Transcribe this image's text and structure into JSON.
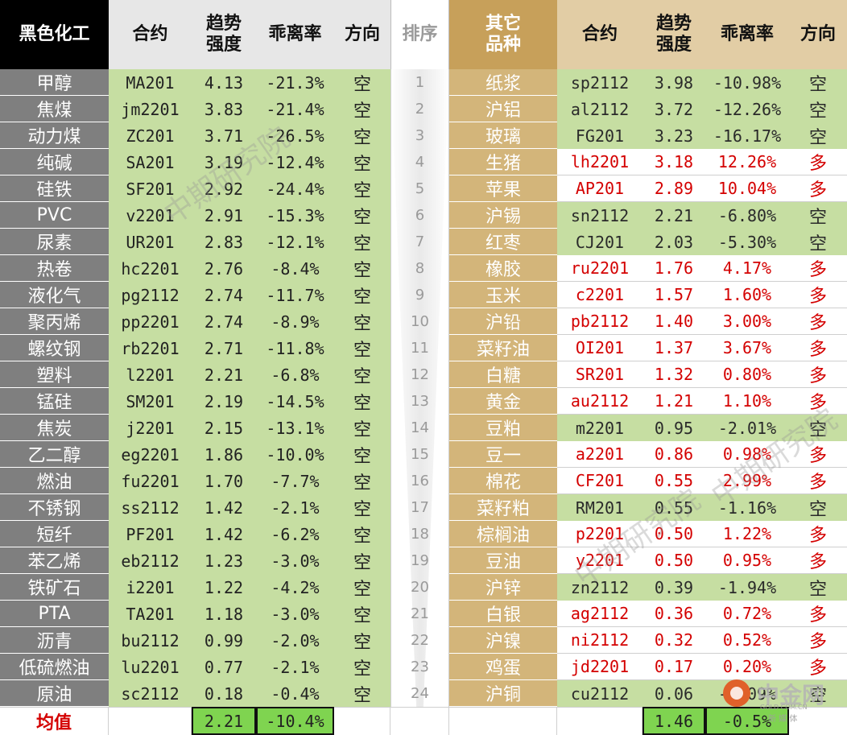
{
  "headers": {
    "left_category": "黑色化工",
    "contract": "合约",
    "trend_line1": "趋势",
    "trend_line2": "强度",
    "deviation": "乖离率",
    "direction": "方向",
    "rank": "排序",
    "right_category_line1": "其它",
    "right_category_line2": "品种"
  },
  "left_rows": [
    {
      "name": "甲醇",
      "code": "MA201",
      "trend": "4.13",
      "dev": "-21.3%",
      "dir": "空"
    },
    {
      "name": "焦煤",
      "code": "jm2201",
      "trend": "3.83",
      "dev": "-21.4%",
      "dir": "空"
    },
    {
      "name": "动力煤",
      "code": "ZC201",
      "trend": "3.71",
      "dev": "-26.5%",
      "dir": "空"
    },
    {
      "name": "纯碱",
      "code": "SA201",
      "trend": "3.19",
      "dev": "-12.4%",
      "dir": "空"
    },
    {
      "name": "硅铁",
      "code": "SF201",
      "trend": "2.92",
      "dev": "-24.4%",
      "dir": "空"
    },
    {
      "name": "PVC",
      "code": "v2201",
      "trend": "2.91",
      "dev": "-15.3%",
      "dir": "空"
    },
    {
      "name": "尿素",
      "code": "UR201",
      "trend": "2.83",
      "dev": "-12.1%",
      "dir": "空"
    },
    {
      "name": "热卷",
      "code": "hc2201",
      "trend": "2.76",
      "dev": "-8.4%",
      "dir": "空"
    },
    {
      "name": "液化气",
      "code": "pg2112",
      "trend": "2.74",
      "dev": "-11.7%",
      "dir": "空"
    },
    {
      "name": "聚丙烯",
      "code": "pp2201",
      "trend": "2.74",
      "dev": "-8.9%",
      "dir": "空"
    },
    {
      "name": "螺纹钢",
      "code": "rb2201",
      "trend": "2.71",
      "dev": "-11.8%",
      "dir": "空"
    },
    {
      "name": "塑料",
      "code": "l2201",
      "trend": "2.21",
      "dev": "-6.8%",
      "dir": "空"
    },
    {
      "name": "锰硅",
      "code": "SM201",
      "trend": "2.19",
      "dev": "-14.5%",
      "dir": "空"
    },
    {
      "name": "焦炭",
      "code": "j2201",
      "trend": "2.15",
      "dev": "-13.1%",
      "dir": "空"
    },
    {
      "name": "乙二醇",
      "code": "eg2201",
      "trend": "1.86",
      "dev": "-10.0%",
      "dir": "空"
    },
    {
      "name": "燃油",
      "code": "fu2201",
      "trend": "1.70",
      "dev": "-7.7%",
      "dir": "空"
    },
    {
      "name": "不锈钢",
      "code": "ss2112",
      "trend": "1.42",
      "dev": "-2.1%",
      "dir": "空"
    },
    {
      "name": "短纤",
      "code": "PF201",
      "trend": "1.42",
      "dev": "-6.2%",
      "dir": "空"
    },
    {
      "name": "苯乙烯",
      "code": "eb2112",
      "trend": "1.23",
      "dev": "-3.0%",
      "dir": "空"
    },
    {
      "name": "铁矿石",
      "code": "i2201",
      "trend": "1.22",
      "dev": "-4.2%",
      "dir": "空"
    },
    {
      "name": "PTA",
      "code": "TA201",
      "trend": "1.18",
      "dev": "-3.0%",
      "dir": "空"
    },
    {
      "name": "沥青",
      "code": "bu2112",
      "trend": "0.99",
      "dev": "-2.0%",
      "dir": "空"
    },
    {
      "name": "低硫燃油",
      "code": "lu2201",
      "trend": "0.77",
      "dev": "-2.1%",
      "dir": "空"
    },
    {
      "name": "原油",
      "code": "sc2112",
      "trend": "0.18",
      "dev": "-0.4%",
      "dir": "空"
    }
  ],
  "ranks": [
    "1",
    "2",
    "3",
    "4",
    "5",
    "6",
    "7",
    "8",
    "9",
    "10",
    "11",
    "12",
    "13",
    "14",
    "15",
    "16",
    "17",
    "18",
    "19",
    "20",
    "21",
    "22",
    "23",
    "24"
  ],
  "right_rows": [
    {
      "name": "纸浆",
      "code": "sp2112",
      "trend": "3.98",
      "dev": "-10.98%",
      "dir": "空",
      "long": false
    },
    {
      "name": "沪铝",
      "code": "al2112",
      "trend": "3.72",
      "dev": "-12.26%",
      "dir": "空",
      "long": false
    },
    {
      "name": "玻璃",
      "code": "FG201",
      "trend": "3.23",
      "dev": "-16.17%",
      "dir": "空",
      "long": false
    },
    {
      "name": "生猪",
      "code": "lh2201",
      "trend": "3.18",
      "dev": "12.26%",
      "dir": "多",
      "long": true
    },
    {
      "name": "苹果",
      "code": "AP201",
      "trend": "2.89",
      "dev": "10.04%",
      "dir": "多",
      "long": true
    },
    {
      "name": "沪锡",
      "code": "sn2112",
      "trend": "2.21",
      "dev": "-6.80%",
      "dir": "空",
      "long": false
    },
    {
      "name": "红枣",
      "code": "CJ201",
      "trend": "2.03",
      "dev": "-5.30%",
      "dir": "空",
      "long": false
    },
    {
      "name": "橡胶",
      "code": "ru2201",
      "trend": "1.76",
      "dev": "4.17%",
      "dir": "多",
      "long": true
    },
    {
      "name": "玉米",
      "code": "c2201",
      "trend": "1.57",
      "dev": "1.60%",
      "dir": "多",
      "long": true
    },
    {
      "name": "沪铅",
      "code": "pb2112",
      "trend": "1.40",
      "dev": "3.00%",
      "dir": "多",
      "long": true
    },
    {
      "name": "菜籽油",
      "code": "OI201",
      "trend": "1.37",
      "dev": "3.67%",
      "dir": "多",
      "long": true
    },
    {
      "name": "白糖",
      "code": "SR201",
      "trend": "1.32",
      "dev": "0.80%",
      "dir": "多",
      "long": true
    },
    {
      "name": "黄金",
      "code": "au2112",
      "trend": "1.21",
      "dev": "1.10%",
      "dir": "多",
      "long": true
    },
    {
      "name": "豆粕",
      "code": "m2201",
      "trend": "0.95",
      "dev": "-2.01%",
      "dir": "空",
      "long": false
    },
    {
      "name": "豆一",
      "code": "a2201",
      "trend": "0.86",
      "dev": "0.98%",
      "dir": "多",
      "long": true
    },
    {
      "name": "棉花",
      "code": "CF201",
      "trend": "0.55",
      "dev": "2.99%",
      "dir": "多",
      "long": true
    },
    {
      "name": "菜籽粕",
      "code": "RM201",
      "trend": "0.55",
      "dev": "-1.16%",
      "dir": "空",
      "long": false
    },
    {
      "name": "棕榈油",
      "code": "p2201",
      "trend": "0.50",
      "dev": "1.22%",
      "dir": "多",
      "long": true
    },
    {
      "name": "豆油",
      "code": "y2201",
      "trend": "0.50",
      "dev": "0.95%",
      "dir": "多",
      "long": true
    },
    {
      "name": "沪锌",
      "code": "zn2112",
      "trend": "0.39",
      "dev": "-1.94%",
      "dir": "空",
      "long": false
    },
    {
      "name": "白银",
      "code": "ag2112",
      "trend": "0.36",
      "dev": "0.72%",
      "dir": "多",
      "long": true
    },
    {
      "name": "沪镍",
      "code": "ni2112",
      "trend": "0.32",
      "dev": "0.52%",
      "dir": "多",
      "long": true
    },
    {
      "name": "鸡蛋",
      "code": "jd2201",
      "trend": "0.17",
      "dev": "0.20%",
      "dir": "多",
      "long": true
    },
    {
      "name": "沪铜",
      "code": "cu2112",
      "trend": "0.06",
      "dev": "-0.09%",
      "dir": "空",
      "long": false
    }
  ],
  "average": {
    "label": "均值",
    "left_trend": "2.21",
    "left_dev": "-10.4%",
    "right_trend": "1.46",
    "right_dev": "-0.5%"
  },
  "watermarks": [
    "中期研究院",
    "中期研究院",
    "中期研究院"
  ],
  "logo": {
    "text": "中金网",
    "sub": "新 媒 体",
    "url_fragment": "GOLD.COM.CN"
  },
  "colors": {
    "left_header_bg": "#000000",
    "left_name_bg": "#7f7f7f",
    "green_cell": "#c6dea2",
    "right_name_bg": "#d3b57a",
    "right_header_bg": "#c7a05a",
    "right_header_cols_bg": "#e2cda5",
    "avg_box": "#7fd450",
    "long_text": "#d40000",
    "average_label": "#d40000"
  }
}
